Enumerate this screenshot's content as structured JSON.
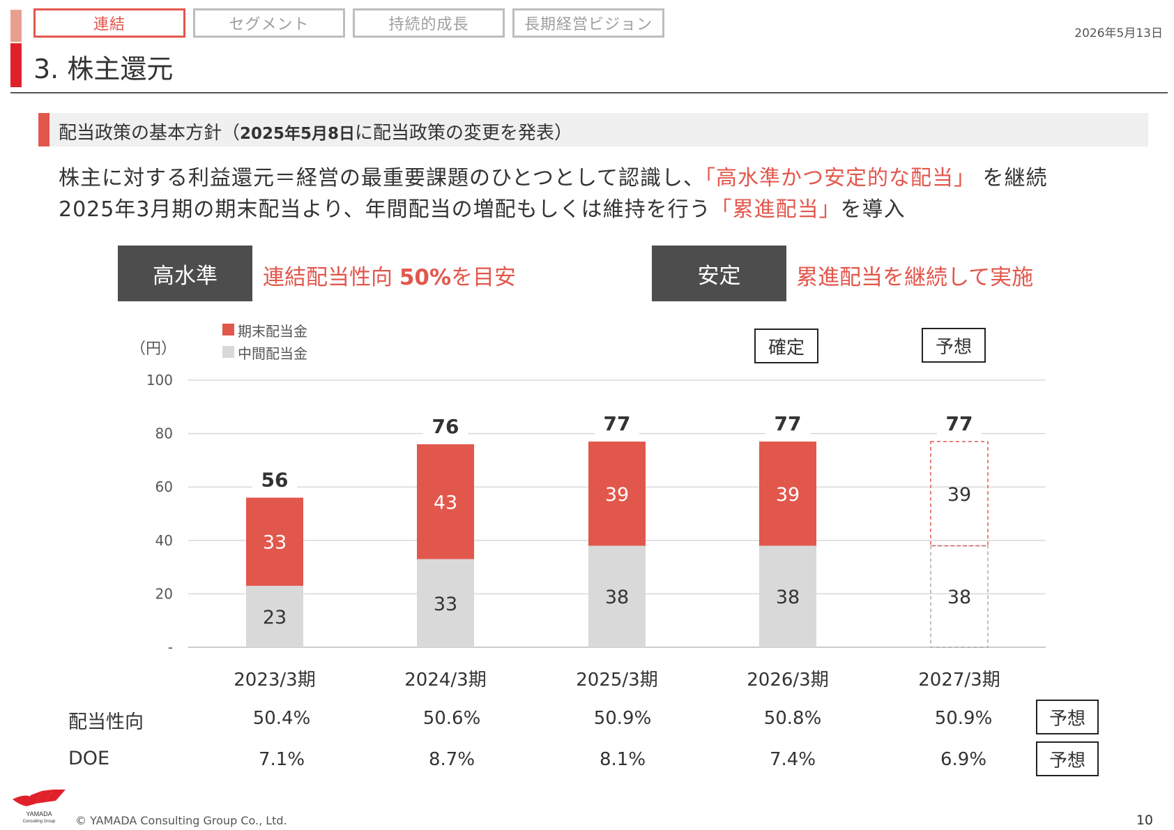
{
  "nav": {
    "tabs": [
      {
        "label": "連結",
        "active": true
      },
      {
        "label": "セグメント",
        "active": false
      },
      {
        "label": "持続的成長",
        "active": false
      },
      {
        "label": "長期経営ビジョン",
        "active": false
      }
    ]
  },
  "header": {
    "title": "3. 株主還元",
    "date": "2026年5月13日"
  },
  "section": {
    "heading_main": "配当政策の基本方針（",
    "heading_bold": "2025年5月8日",
    "heading_tail": "に配当政策の変更を発表）"
  },
  "body": {
    "line1_a": "株主に対する利益還元＝経営の最重要課題のひとつとして認識し、",
    "line1_red": "「高水準かつ安定的な配当」",
    "line1_b": " を継続",
    "line2_a": "2025年3月期の期末配当より、年間配当の増配もしくは維持を行う",
    "line2_red": "「累進配当」",
    "line2_b": "を導入"
  },
  "policies": [
    {
      "pill": "高水準",
      "text_a": "連結配当性向 ",
      "text_bold": "50%",
      "text_b": "を目安"
    },
    {
      "pill": "安定",
      "text_a": "累進配当を継続して実施",
      "text_bold": "",
      "text_b": ""
    }
  ],
  "tags": {
    "confirmed": "確定",
    "forecast": "予想",
    "payout_forecast": "予想",
    "doe_forecast": "予想"
  },
  "colors": {
    "accent": "#e2574c",
    "interim": "#d9d9d9",
    "pill_bg": "#4d4d4d"
  },
  "chart_data": {
    "type": "bar",
    "stacked": true,
    "unit_label": "（円）",
    "categories": [
      "2023/3期",
      "2024/3期",
      "2025/3期",
      "2026/3期",
      "2027/3期"
    ],
    "series": [
      {
        "name": "中間配当金",
        "values": [
          23,
          33,
          38,
          38,
          38
        ],
        "color": "#d9d9d9"
      },
      {
        "name": "期末配当金",
        "values": [
          33,
          43,
          39,
          39,
          39
        ],
        "color": "#e2574c"
      }
    ],
    "totals": [
      56,
      76,
      77,
      77,
      77
    ],
    "forecast_flags": [
      false,
      false,
      false,
      false,
      true
    ],
    "y_ticks": [
      "-",
      "20",
      "40",
      "60",
      "80",
      "100"
    ],
    "ylim": [
      0,
      100
    ],
    "grid": true,
    "legend_order": [
      "期末配当金",
      "中間配当金"
    ]
  },
  "metrics": [
    {
      "label": "配当性向",
      "values": [
        "50.4%",
        "50.6%",
        "50.9%",
        "50.8%",
        "50.9%"
      ]
    },
    {
      "label": "DOE",
      "values": [
        "7.1%",
        "8.7%",
        "8.1%",
        "7.4%",
        "6.9%"
      ]
    }
  ],
  "footer": {
    "logo_text_1": "YAMADA",
    "logo_text_2": "Consulting Group",
    "copyright": "© YAMADA Consulting Group Co., Ltd.",
    "page": "10"
  }
}
